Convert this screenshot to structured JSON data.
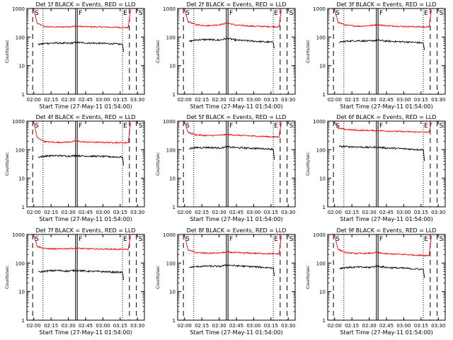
{
  "chart_data": [
    {
      "type": "line",
      "title": "Det 1f BLACK = Events, RED = LLD",
      "ylabel": "Counts/sec",
      "xlabel": "Start Time (27-May-11 01:54:00)",
      "yscale": "log",
      "ylim": [
        1,
        1000
      ],
      "xlim": [
        "01:54",
        "03:36"
      ],
      "x_ticks": [
        "02:00",
        "02:15",
        "02:30",
        "02:45",
        "03:00",
        "03:15",
        "03:30"
      ],
      "y_ticks": [
        "1",
        "10",
        "100",
        "1000"
      ],
      "markers": [
        {
          "label": "S",
          "time": "01:59",
          "style": "dashed"
        },
        {
          "label": "F",
          "time": "02:37",
          "style": "solid"
        },
        {
          "label": "E",
          "time": "03:23",
          "style": "dashed"
        },
        {
          "label": "S",
          "time": "03:29",
          "style": "dashed"
        }
      ],
      "dotted_lines": [
        "02:08",
        "03:17"
      ],
      "series": [
        {
          "color": "#ff0000",
          "x": [
            "02:00",
            "02:03",
            "02:10",
            "02:20",
            "02:30",
            "02:37",
            "02:45",
            "03:00",
            "03:10",
            "03:18",
            "03:22",
            "03:24"
          ],
          "y": [
            900,
            300,
            230,
            225,
            230,
            240,
            230,
            225,
            220,
            215,
            215,
            900
          ]
        },
        {
          "color": "#000000",
          "x": [
            "02:04",
            "02:10",
            "02:20",
            "02:30",
            "02:37",
            "02:45",
            "03:00",
            "03:10",
            "03:17",
            "03:18"
          ],
          "y": [
            55,
            60,
            62,
            60,
            65,
            62,
            60,
            58,
            55,
            30
          ]
        }
      ]
    },
    {
      "type": "line",
      "title": "Det 2f BLACK = Events, RED = LLD",
      "ylabel": "Counts/sec",
      "xlabel": "Start Time (27-May-11 01:54:00)",
      "yscale": "log",
      "ylim": [
        1,
        1000
      ],
      "xlim": [
        "01:54",
        "03:36"
      ],
      "x_ticks": [
        "02:00",
        "02:15",
        "02:30",
        "02:45",
        "03:00",
        "03:15",
        "03:30"
      ],
      "y_ticks": [
        "1",
        "10",
        "100",
        "1000"
      ],
      "markers": [
        {
          "label": "S",
          "time": "01:59",
          "style": "dashed"
        },
        {
          "label": "F",
          "time": "02:37",
          "style": "solid"
        },
        {
          "label": "E",
          "time": "03:23",
          "style": "dashed"
        },
        {
          "label": "S",
          "time": "03:29",
          "style": "dashed"
        }
      ],
      "dotted_lines": [
        "02:08",
        "03:17"
      ],
      "series": [
        {
          "color": "#ff0000",
          "x": [
            "02:00",
            "02:03",
            "02:10",
            "02:20",
            "02:30",
            "02:37",
            "02:45",
            "03:00",
            "03:10",
            "03:18",
            "03:22",
            "03:24"
          ],
          "y": [
            900,
            350,
            270,
            250,
            270,
            310,
            260,
            240,
            235,
            230,
            230,
            900
          ]
        },
        {
          "color": "#000000",
          "x": [
            "02:04",
            "02:10",
            "02:20",
            "02:30",
            "02:37",
            "02:45",
            "03:00",
            "03:10",
            "03:17",
            "03:18"
          ],
          "y": [
            70,
            80,
            82,
            78,
            90,
            78,
            72,
            68,
            65,
            40
          ]
        }
      ]
    },
    {
      "type": "line",
      "title": "Det 3f BLACK = Events, RED = LLD",
      "ylabel": "Counts/sec",
      "xlabel": "Start Time (27-May-11 01:54:00)",
      "yscale": "log",
      "ylim": [
        1,
        1000
      ],
      "xlim": [
        "01:54",
        "03:36"
      ],
      "x_ticks": [
        "02:00",
        "02:15",
        "02:30",
        "02:45",
        "03:00",
        "03:15",
        "03:30"
      ],
      "y_ticks": [
        "1",
        "10",
        "100",
        "1000"
      ],
      "markers": [
        {
          "label": "S",
          "time": "01:59",
          "style": "dashed"
        },
        {
          "label": "F",
          "time": "02:37",
          "style": "solid"
        },
        {
          "label": "E",
          "time": "03:23",
          "style": "dashed"
        },
        {
          "label": "S",
          "time": "03:29",
          "style": "dashed"
        }
      ],
      "dotted_lines": [
        "02:08",
        "03:17"
      ],
      "series": [
        {
          "color": "#ff0000",
          "x": [
            "02:00",
            "02:03",
            "02:10",
            "02:20",
            "02:30",
            "02:37",
            "02:45",
            "03:00",
            "03:10",
            "03:18",
            "03:22",
            "03:24"
          ],
          "y": [
            900,
            330,
            260,
            240,
            250,
            270,
            250,
            235,
            230,
            225,
            225,
            900
          ]
        },
        {
          "color": "#000000",
          "x": [
            "02:04",
            "02:10",
            "02:20",
            "02:30",
            "02:37",
            "02:45",
            "03:00",
            "03:10",
            "03:17",
            "03:18"
          ],
          "y": [
            65,
            72,
            75,
            72,
            78,
            72,
            68,
            65,
            62,
            35
          ]
        }
      ]
    },
    {
      "type": "line",
      "title": "Det 4f BLACK = Events, RED = LLD",
      "ylabel": "Counts/sec",
      "xlabel": "Start Time (27-May-11 01:54:00)",
      "yscale": "log",
      "ylim": [
        1,
        1000
      ],
      "xlim": [
        "01:54",
        "03:36"
      ],
      "x_ticks": [
        "02:00",
        "02:15",
        "02:30",
        "02:45",
        "03:00",
        "03:15",
        "03:30"
      ],
      "y_ticks": [
        "1",
        "10",
        "100",
        "1000"
      ],
      "markers": [
        {
          "label": "S",
          "time": "01:59",
          "style": "dashed"
        },
        {
          "label": "F",
          "time": "02:37",
          "style": "solid"
        },
        {
          "label": "E",
          "time": "03:23",
          "style": "dashed"
        },
        {
          "label": "S",
          "time": "03:29",
          "style": "dashed"
        }
      ],
      "dotted_lines": [
        "02:08",
        "03:17"
      ],
      "series": [
        {
          "color": "#ff0000",
          "x": [
            "02:00",
            "02:03",
            "02:10",
            "02:20",
            "02:30",
            "02:37",
            "02:45",
            "03:00",
            "03:10",
            "03:18",
            "03:22",
            "03:24"
          ],
          "y": [
            900,
            260,
            190,
            180,
            185,
            200,
            185,
            180,
            178,
            175,
            175,
            900
          ]
        },
        {
          "color": "#000000",
          "x": [
            "02:04",
            "02:10",
            "02:20",
            "02:30",
            "02:37",
            "02:45",
            "03:00",
            "03:10",
            "03:17",
            "03:18"
          ],
          "y": [
            55,
            60,
            62,
            60,
            62,
            60,
            58,
            56,
            55,
            28
          ]
        }
      ]
    },
    {
      "type": "line",
      "title": "Det 5f BLACK = Events, RED = LLD",
      "ylabel": "Counts/sec",
      "xlabel": "Start Time (27-May-11 01:54:00)",
      "yscale": "log",
      "ylim": [
        1,
        1000
      ],
      "xlim": [
        "01:54",
        "03:36"
      ],
      "x_ticks": [
        "02:00",
        "02:15",
        "02:30",
        "02:45",
        "03:00",
        "03:15",
        "03:30"
      ],
      "y_ticks": [
        "1",
        "10",
        "100",
        "1000"
      ],
      "markers": [
        {
          "label": "S",
          "time": "01:59",
          "style": "dashed"
        },
        {
          "label": "F",
          "time": "02:37",
          "style": "solid"
        },
        {
          "label": "E",
          "time": "03:23",
          "style": "dashed"
        },
        {
          "label": "S",
          "time": "03:29",
          "style": "dashed"
        }
      ],
      "dotted_lines": [
        "02:08",
        "03:17"
      ],
      "series": [
        {
          "color": "#ff0000",
          "x": [
            "02:00",
            "02:03",
            "02:10",
            "02:20",
            "02:30",
            "02:37",
            "02:45",
            "03:00",
            "03:10",
            "03:18",
            "03:22",
            "03:24"
          ],
          "y": [
            900,
            400,
            330,
            310,
            320,
            340,
            320,
            300,
            290,
            280,
            280,
            900
          ]
        },
        {
          "color": "#000000",
          "x": [
            "02:04",
            "02:10",
            "02:20",
            "02:30",
            "02:37",
            "02:45",
            "03:00",
            "03:10",
            "03:17",
            "03:18"
          ],
          "y": [
            110,
            118,
            120,
            115,
            125,
            118,
            112,
            108,
            105,
            45
          ]
        }
      ]
    },
    {
      "type": "line",
      "title": "Det 6f BLACK = Events, RED = LLD",
      "ylabel": "Counts/sec",
      "xlabel": "Start Time (27-May-11 01:54:00)",
      "yscale": "log",
      "ylim": [
        1,
        1000
      ],
      "xlim": [
        "01:54",
        "03:36"
      ],
      "x_ticks": [
        "02:00",
        "02:15",
        "02:30",
        "02:45",
        "03:00",
        "03:15",
        "03:30"
      ],
      "y_ticks": [
        "1",
        "10",
        "100",
        "1000"
      ],
      "markers": [
        {
          "label": "S",
          "time": "01:59",
          "style": "dashed"
        },
        {
          "label": "F",
          "time": "02:37",
          "style": "solid"
        },
        {
          "label": "E",
          "time": "03:23",
          "style": "dashed"
        },
        {
          "label": "S",
          "time": "03:29",
          "style": "dashed"
        }
      ],
      "dotted_lines": [
        "02:08",
        "03:17"
      ],
      "series": [
        {
          "color": "#ff0000",
          "x": [
            "02:00",
            "02:03",
            "02:10",
            "02:20",
            "02:30",
            "02:37",
            "02:45",
            "03:00",
            "03:10",
            "03:18",
            "03:22",
            "03:24"
          ],
          "y": [
            900,
            560,
            510,
            480,
            470,
            470,
            450,
            430,
            420,
            410,
            410,
            900
          ]
        },
        {
          "color": "#000000",
          "x": [
            "02:04",
            "02:10",
            "02:20",
            "02:30",
            "02:37",
            "02:45",
            "03:00",
            "03:10",
            "03:17",
            "03:18"
          ],
          "y": [
            130,
            128,
            125,
            120,
            122,
            115,
            108,
            102,
            100,
            40
          ]
        }
      ]
    },
    {
      "type": "line",
      "title": "Det 7f BLACK = Events, RED = LLD",
      "ylabel": "Counts/sec",
      "xlabel": "Start Time (27-May-11 01:54:00)",
      "yscale": "log",
      "ylim": [
        1,
        1000
      ],
      "xlim": [
        "01:54",
        "03:36"
      ],
      "x_ticks": [
        "02:00",
        "02:15",
        "02:30",
        "02:45",
        "03:00",
        "03:15",
        "03:30"
      ],
      "y_ticks": [
        "1",
        "10",
        "100",
        "1000"
      ],
      "markers": [
        {
          "label": "S",
          "time": "01:59",
          "style": "dashed"
        },
        {
          "label": "F",
          "time": "02:37",
          "style": "solid"
        },
        {
          "label": "E",
          "time": "03:23",
          "style": "dashed"
        },
        {
          "label": "S",
          "time": "03:29",
          "style": "dashed"
        }
      ],
      "dotted_lines": [
        "02:08",
        "03:17"
      ],
      "series": [
        {
          "color": "#ff0000",
          "x": [
            "02:00",
            "02:03",
            "02:10",
            "02:20",
            "02:30",
            "02:37",
            "02:45",
            "03:00",
            "03:10",
            "03:18",
            "03:22",
            "03:24"
          ],
          "y": [
            900,
            380,
            320,
            310,
            320,
            330,
            315,
            310,
            305,
            300,
            300,
            900
          ]
        },
        {
          "color": "#000000",
          "x": [
            "02:04",
            "02:10",
            "02:20",
            "02:30",
            "02:37",
            "02:45",
            "03:00",
            "03:10",
            "03:17",
            "03:18"
          ],
          "y": [
            48,
            52,
            55,
            52,
            56,
            52,
            50,
            48,
            47,
            25
          ]
        }
      ]
    },
    {
      "type": "line",
      "title": "Det 8f BLACK = Events, RED = LLD",
      "ylabel": "Counts/sec",
      "xlabel": "Start Time (27-May-11 01:54:00)",
      "yscale": "log",
      "ylim": [
        1,
        1000
      ],
      "xlim": [
        "01:54",
        "03:36"
      ],
      "x_ticks": [
        "02:00",
        "02:15",
        "02:30",
        "02:45",
        "03:00",
        "03:15",
        "03:30"
      ],
      "y_ticks": [
        "1",
        "10",
        "100",
        "1000"
      ],
      "markers": [
        {
          "label": "S",
          "time": "01:59",
          "style": "dashed"
        },
        {
          "label": "F",
          "time": "02:37",
          "style": "solid"
        },
        {
          "label": "E",
          "time": "03:23",
          "style": "dashed"
        },
        {
          "label": "S",
          "time": "03:29",
          "style": "dashed"
        }
      ],
      "dotted_lines": [
        "02:08",
        "03:17"
      ],
      "series": [
        {
          "color": "#ff0000",
          "x": [
            "02:00",
            "02:03",
            "02:10",
            "02:20",
            "02:30",
            "02:37",
            "02:45",
            "03:00",
            "03:10",
            "03:18",
            "03:22",
            "03:24"
          ],
          "y": [
            900,
            290,
            230,
            220,
            225,
            240,
            230,
            220,
            215,
            210,
            210,
            900
          ]
        },
        {
          "color": "#000000",
          "x": [
            "02:04",
            "02:10",
            "02:20",
            "02:30",
            "02:37",
            "02:45",
            "03:00",
            "03:10",
            "03:17",
            "03:18"
          ],
          "y": [
            70,
            75,
            78,
            76,
            85,
            80,
            74,
            70,
            68,
            35
          ]
        }
      ]
    },
    {
      "type": "line",
      "title": "Det 9f BLACK = Events, RED = LLD",
      "ylabel": "Counts/sec",
      "xlabel": "Start Time (27-May-11 01:54:00)",
      "yscale": "log",
      "ylim": [
        1,
        1000
      ],
      "xlim": [
        "01:54",
        "03:36"
      ],
      "x_ticks": [
        "02:00",
        "02:15",
        "02:30",
        "02:45",
        "03:00",
        "03:15",
        "03:30"
      ],
      "y_ticks": [
        "1",
        "10",
        "100",
        "1000"
      ],
      "markers": [
        {
          "label": "S",
          "time": "01:59",
          "style": "dashed"
        },
        {
          "label": "F",
          "time": "02:37",
          "style": "solid"
        },
        {
          "label": "E",
          "time": "03:23",
          "style": "dashed"
        },
        {
          "label": "S",
          "time": "03:29",
          "style": "dashed"
        }
      ],
      "dotted_lines": [
        "02:08",
        "03:17"
      ],
      "series": [
        {
          "color": "#ff0000",
          "x": [
            "02:00",
            "02:03",
            "02:10",
            "02:20",
            "02:30",
            "02:37",
            "02:45",
            "03:00",
            "03:10",
            "03:18",
            "03:22",
            "03:24"
          ],
          "y": [
            900,
            300,
            230,
            215,
            220,
            230,
            210,
            200,
            190,
            185,
            185,
            900
          ]
        },
        {
          "color": "#000000",
          "x": [
            "02:04",
            "02:10",
            "02:20",
            "02:30",
            "02:37",
            "02:45",
            "03:00",
            "03:10",
            "03:17",
            "03:18"
          ],
          "y": [
            65,
            70,
            72,
            70,
            78,
            70,
            66,
            62,
            60,
            30
          ]
        }
      ]
    }
  ]
}
